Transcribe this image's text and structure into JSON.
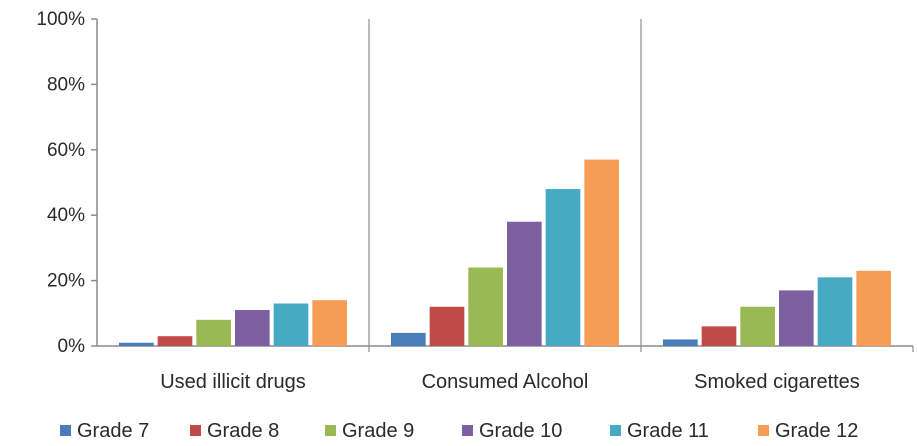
{
  "chart_data": {
    "type": "bar",
    "categories": [
      "Used illicit drugs",
      "Consumed Alcohol",
      "Smoked cigarettes"
    ],
    "series": [
      {
        "name": "Grade 7",
        "color": "#4a7ebb",
        "values": [
          1,
          4,
          2
        ]
      },
      {
        "name": "Grade 8",
        "color": "#be4b48",
        "values": [
          3,
          12,
          6
        ]
      },
      {
        "name": "Grade 9",
        "color": "#98b954",
        "values": [
          8,
          24,
          12
        ]
      },
      {
        "name": "Grade 10",
        "color": "#7d60a0",
        "values": [
          11,
          38,
          17
        ]
      },
      {
        "name": "Grade 11",
        "color": "#46aac5",
        "values": [
          13,
          48,
          21
        ]
      },
      {
        "name": "Grade 12",
        "color": "#f59d56",
        "values": [
          14,
          57,
          23
        ]
      }
    ],
    "yticks": [
      "0%",
      "20%",
      "40%",
      "60%",
      "80%",
      "100%"
    ],
    "ylim": [
      0,
      100
    ],
    "grid": false,
    "category_separators": true,
    "legend_position": "bottom",
    "title": "",
    "xlabel": "",
    "ylabel": ""
  }
}
